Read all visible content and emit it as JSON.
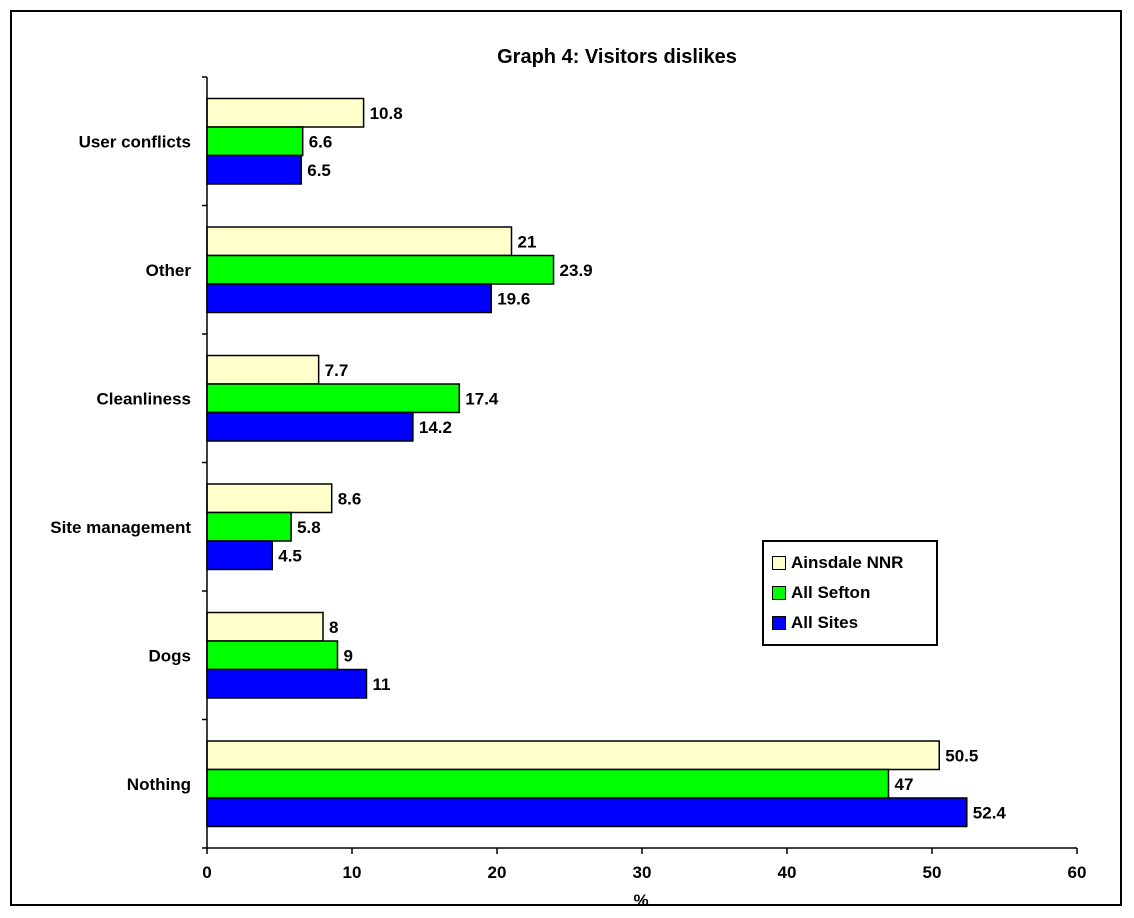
{
  "chart_data": {
    "type": "bar",
    "orientation": "horizontal",
    "title": "Graph 4: Visitors dislikes",
    "xlabel": "%",
    "ylabel": "",
    "xlim": [
      0,
      60
    ],
    "xticks": [
      "0",
      "10",
      "20",
      "30",
      "40",
      "50",
      "60"
    ],
    "categories": [
      "User conflicts",
      "Other",
      "Cleanliness",
      "Site management",
      "Dogs",
      "Nothing"
    ],
    "series": [
      {
        "name": "Ainsdale NNR",
        "color": "#ffffcc",
        "values": [
          10.8,
          21,
          7.7,
          8.6,
          8,
          50.5
        ],
        "labels": [
          "10.8",
          "21",
          "7.7",
          "8.6",
          "8",
          "50.5"
        ]
      },
      {
        "name": "All Sefton",
        "color": "#00ff00",
        "values": [
          6.6,
          23.9,
          17.4,
          5.8,
          9,
          47
        ],
        "labels": [
          "6.6",
          "23.9",
          "17.4",
          "5.8",
          "9",
          "47"
        ]
      },
      {
        "name": "All Sites",
        "color": "#0000ff",
        "values": [
          6.5,
          19.6,
          14.2,
          4.5,
          11,
          52.4
        ],
        "labels": [
          "6.5",
          "19.6",
          "14.2",
          "4.5",
          "11",
          "52.4"
        ]
      }
    ],
    "grid": false,
    "legend_position": "right"
  }
}
